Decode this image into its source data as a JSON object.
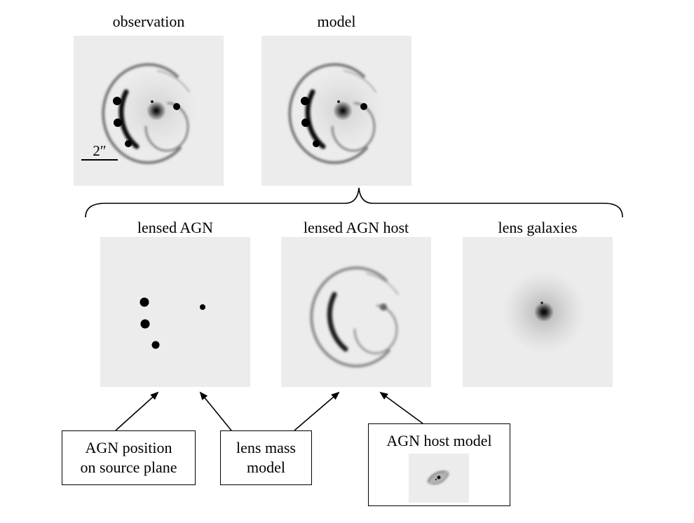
{
  "panels": {
    "observation": {
      "title": "observation",
      "scale_bar": "2″"
    },
    "model": {
      "title": "model"
    },
    "lensed_agn": {
      "title": "lensed AGN"
    },
    "lensed_agn_host": {
      "title": "lensed AGN host"
    },
    "lens_galaxies": {
      "title": "lens galaxies"
    }
  },
  "inputs": {
    "agn_position": {
      "line1": "AGN position",
      "line2": "on source plane"
    },
    "lens_mass_model": {
      "line1": "lens mass",
      "line2": "model"
    },
    "agn_host_model": {
      "title": "AGN host model"
    }
  },
  "colors": {
    "panel_bg": "#ececec",
    "ink": "#000000"
  }
}
